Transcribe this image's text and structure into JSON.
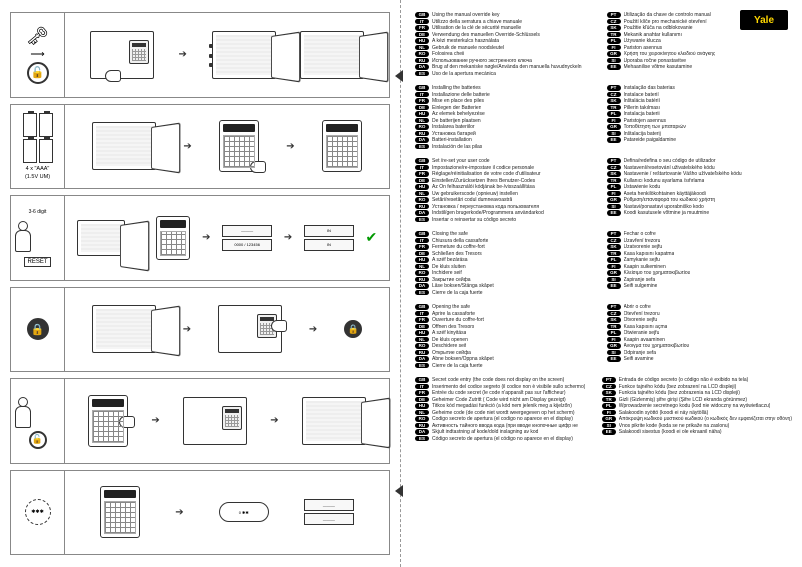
{
  "brand": "Yale",
  "colors": {
    "brand_bg": "#000000",
    "brand_fg": "#ffd700",
    "line": "#333333"
  },
  "left_rows": [
    {
      "icon": "key",
      "labels": []
    },
    {
      "icon": "battery",
      "labels": [
        "4 x \"AAA\"",
        "(1.5V UM)"
      ]
    },
    {
      "icon": "reset",
      "labels": [
        "3-6 digit"
      ],
      "sub": "RESET"
    },
    {
      "icon": "lock-closed",
      "labels": []
    },
    {
      "icon": "lock-open",
      "labels": []
    },
    {
      "icon": "secret",
      "labels": []
    }
  ],
  "langs": [
    "GB",
    "IT",
    "FR",
    "DE",
    "HU",
    "NL",
    "RO",
    "RU",
    "DA",
    "ES",
    "PT",
    "CZ",
    "SK",
    "TR",
    "PL",
    "FI",
    "GR",
    "SI",
    "EE"
  ],
  "sections": [
    {
      "title": {
        "GB": "Using the manual override key",
        "IT": "Utilizzo della serratura a chiave manuale",
        "FR": "Utilisation de la clé de sécurité manuelle",
        "DE": "Verwendung des manuellen Override-Schlüssels",
        "HU": "A kézi mesterkulcs használata",
        "NL": "Gebruik de manuele noodsleutel",
        "RO": "Folosirea cheii",
        "RU": "Использование ручного экстренного ключа",
        "DA": "Brug af den mekaniske nøgle/Använda den manuella huvudnyckeln",
        "ES": "Uso de la apertura mecánica",
        "PT": "Utilização da chave de controlo manual",
        "CZ": "Použití klíče pro mechanické otevření",
        "SK": "Použitie kľúča na odblokovanie",
        "TR": "Mekanik anahtar kullanımı",
        "PL": "Używanie klucza",
        "FI": "Pariston asennus",
        "GR": "Χρήση του χειροκίνητου κλειδιού ανάγκης",
        "SI": "Uporaba ročne ponastavitve",
        "EE": "Mehaanilise võtme kasutamine"
      }
    },
    {
      "title": {
        "GB": "Installing the batteries",
        "IT": "Installazione delle batterie",
        "FR": "Mise en place des piles",
        "DE": "Einlegen der Batterien",
        "HU": "Az elemek behelyezése",
        "NL": "De batterijen plaatsen",
        "RO": "Instalarea bateriilor",
        "RU": "Установка батарей",
        "DA": "Batteri-installation",
        "ES": "Instalación de las pilas",
        "PT": "Instalação das baterias",
        "CZ": "Instalace baterií",
        "SK": "Inštalácia batérií",
        "TR": "Pillerin takılması",
        "PL": "Instalacja baterii",
        "FI": "Paristojen asennus",
        "GR": "Τοποθέτηση των μπαταριών",
        "SI": "Inštalacija baterij",
        "EE": "Patareide paigaldamine"
      }
    },
    {
      "title": {
        "GB": "Set /re-set your user code",
        "IT": "Impostazione/re-impostare il codice personale",
        "FR": "Réglage/réinitialisation de votre code d'utilisateur",
        "DE": "Einstellen/Zurücksetzen Ihres Benutzer-Codes",
        "HU": "Az Ön felhasználói kódjának be-/visszaállítása",
        "NL": "Uw gebruikerscode (opnieuw) instellen",
        "RO": "Setări/resetări codul dumneavoastră",
        "RU": "Установка / переустановка кода пользователя",
        "DA": "Indstil/gen brugerkode/Programmera användarkod",
        "ES": "Insertar o reinsertar su código secreto",
        "PT": "Defina/redefina o seu código de utilizador",
        "CZ": "Nastavení/resetování uživatelského kódu",
        "SK": "Nastavenie / reštartovanie Vášho užívateľského kódu",
        "TR": "Kullanıcı kodunu ayarlama /sıfırlama",
        "PL": "Ustawienie kodu",
        "FI": "Aseta henkilökohtainen käyttäjäkoodi",
        "GR": "Ρύθμιση/επαναφορά του κωδικού χρήστη",
        "SI": "Nastavi/ponastavi uporabniško kodo",
        "EE": "Koodi kasutusele võtmine ja muutmine"
      }
    },
    {
      "title": {
        "GB": "Closing the safe",
        "IT": "Chiusura della cassaforte",
        "FR": "Fermeture du coffre-fort",
        "DE": "Schließen des Tresors",
        "HU": "A széf bezárása",
        "NL": "De kluis sluiten",
        "RO": "Închidere seif",
        "RU": "Закрытие сейфа",
        "DA": "Låse boksen/Stänga skåpet",
        "ES": "Cierre de la caja fuerte",
        "PT": "Fechar o cofre",
        "CZ": "Uzavření trezoru",
        "SK": "Uzatvorenie sejfu",
        "TR": "Kasa kapısını kapatma",
        "PL": "Zamykanie sejfu",
        "FI": "Kaapin sulkeminen",
        "GR": "Κλείσιμο του χρηματοκιβωτίου",
        "SI": "Zapiranje sefa",
        "EE": "Seifi sulgemine"
      }
    },
    {
      "title": {
        "GB": "Opening the safe",
        "IT": "Aprire la cassaforte",
        "FR": "Ouverture du coffre-fort",
        "DE": "Öffnen des Tresors",
        "HU": "A széf kinyitása",
        "NL": "De kluis openen",
        "RO": "Deschidere seif",
        "RU": "Открытие сейфа",
        "DA": "Åbne boksen/Öppna skåpet",
        "ES": "Cierre de la caja fuerte",
        "PT": "Abrir o cofre",
        "CZ": "Otevření trezoru",
        "SK": "Otvorenie sejfu",
        "TR": "Kasa kapısını açma",
        "PL": "Otwieranie sejfu",
        "FI": "Kaapin avaaminen",
        "GR": "Άνοιγμα του χρηματοκιβωτίου",
        "SI": "Odpiranje sefa",
        "EE": "Seifi avamine"
      }
    },
    {
      "title": {
        "GB": "Secret code entry (the code does not display on the screen)",
        "IT": "Inserimento del codice segreto (il codice non è visibile sullo schermo)",
        "FR": "Entrée du code secret (le code n'apparaît pas sur l'afficheur)",
        "DE": "Geheimer Code Zutritt ( Code wird nicht am Display gezeigt)",
        "HU": "Titkos kód megadási funkció (a kód nem jelenik meg a kijelzőn)",
        "NL": "Geheime code (de code niet wordt weergegeven op het scherm)",
        "RO": "Codigo secreto de apertura (el codigo no aparece en el display)",
        "RU": "Активность тайного ввода кода (при вводе кнопочные цифр не",
        "DA": "Skjult indtastning af kode/dold inslagning av kod",
        "ES": "Código secreto de apertura (el código no aparece en el display)",
        "PT": "Entrada de código secreto (o código não é exibido na tela)",
        "CZ": "Funkce tajného kódu (bez zobrazení na LCD displeji)",
        "SK": "Funkcia tajného kódu (bez zobrazenia na LCD displeji)",
        "TR": "Gizli (Gizlenmiş) şifre girişi (Şifre LCD ekranda görünmez)",
        "PL": "Wprowadzenie secretnego kodu (kod nie widoczny na wyświetlaczu)",
        "FI": "Salakoodin syöttö (koodi ei näy näytöllä)",
        "GR": "Απόκρυψη κωδικού μυστικού κωδικού (ο κωδικός δεν εμφανίζεται στην οθόνη)",
        "SI": "Vnos pikrite kode (koda se ne prikaže na zaslonu)",
        "EE": "Salakoodi sisestus (koodi ei ole ekraanil näha)"
      }
    }
  ],
  "display_text": "―――",
  "code_sample": "0000 / 123456"
}
